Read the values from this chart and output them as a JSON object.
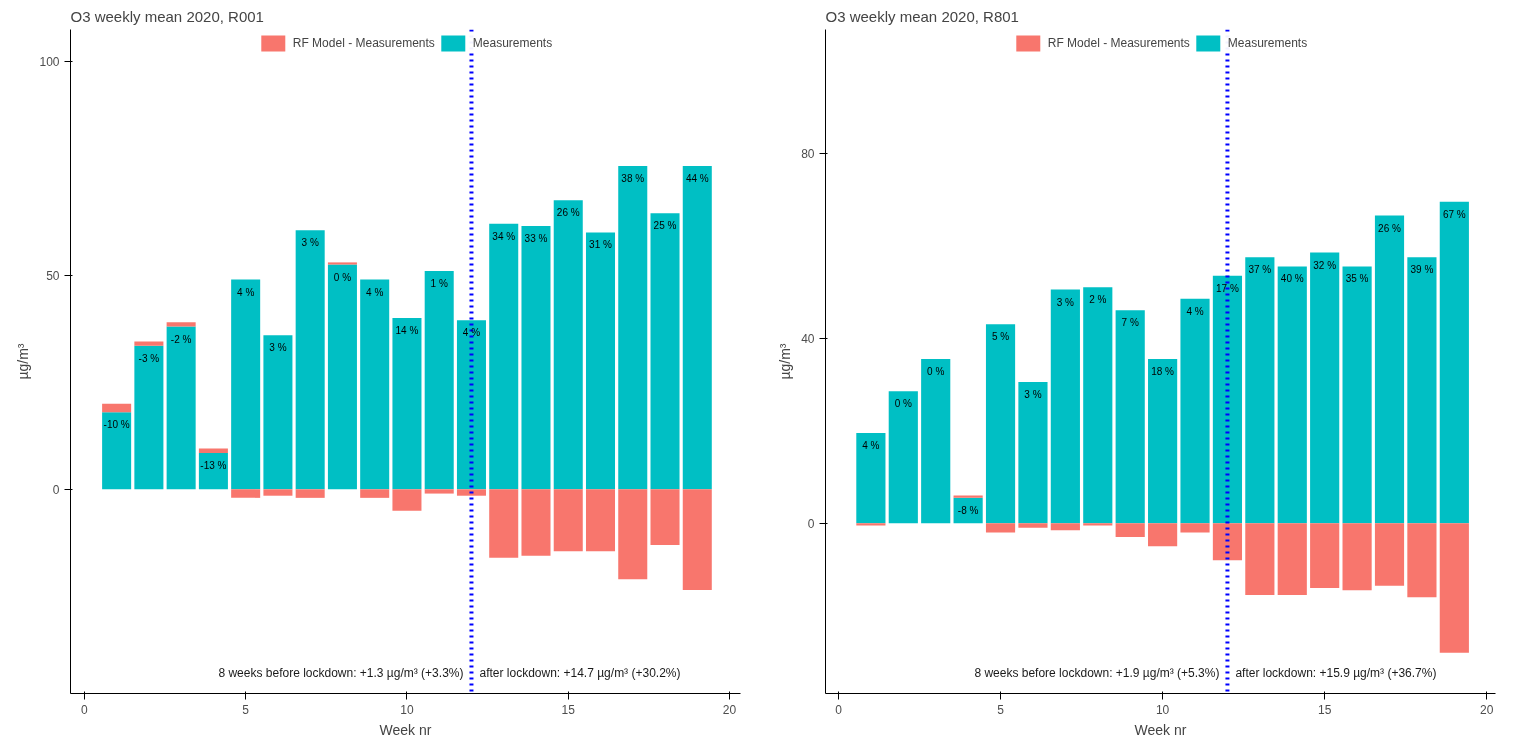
{
  "chart_data": [
    {
      "type": "bar",
      "title": "O3  weekly mean 2020, R001",
      "xlabel": "Week nr",
      "ylabel": "µg/m³",
      "stacked": true,
      "legend": "top",
      "grid": false,
      "x": [
        1,
        2,
        3,
        4,
        5,
        6,
        7,
        8,
        9,
        10,
        11,
        12,
        13,
        14,
        15,
        16,
        17,
        18,
        19
      ],
      "xlim": [
        -0.43,
        20.34
      ],
      "xticks": [
        0,
        5,
        10,
        15,
        20
      ],
      "ylim": [
        -47.7,
        107.4
      ],
      "yticks": [
        0,
        50,
        100
      ],
      "series": [
        {
          "name": "Measurements",
          "color": "#00bfc4",
          "values": [
            18,
            33.5,
            38,
            8.5,
            49,
            36,
            60.5,
            52.5,
            49,
            40,
            51,
            39.5,
            62,
            61.5,
            67.5,
            60,
            75.5,
            64.5,
            75.5
          ]
        },
        {
          "name": "RF Model - Measurements",
          "color": "#f8766d",
          "values": [
            2,
            1,
            1,
            1,
            -2,
            -1.5,
            -2,
            0.5,
            -2,
            -5,
            -1,
            -1.5,
            -16,
            -15.5,
            -14.5,
            -14.5,
            -21,
            -13,
            -23.5
          ]
        }
      ],
      "ref_lines": [
        {
          "axis": "x",
          "value": 12,
          "color": "#0000ff",
          "line_style": "dotted"
        }
      ],
      "annotations": [
        "8 weeks before lockdown: +1.3 µg/m³ (+3.3%)",
        "after lockdown: +14.7 µg/m³ (+30.2%)",
        {
          "text": "-10 %",
          "x": 1,
          "y": 18
        },
        {
          "text": "-3 %",
          "x": 2,
          "y": 33.5
        },
        {
          "text": "-2 %",
          "x": 3,
          "y": 38
        },
        {
          "text": "-13 %",
          "x": 4,
          "y": 8.5
        },
        {
          "text": "4 %",
          "x": 5,
          "y": 49
        },
        {
          "text": "3 %",
          "x": 6,
          "y": 36
        },
        {
          "text": "3 %",
          "x": 7,
          "y": 60.5
        },
        {
          "text": "0 %",
          "x": 8,
          "y": 52.5
        },
        {
          "text": "4 %",
          "x": 9,
          "y": 49
        },
        {
          "text": "14 %",
          "x": 10,
          "y": 40
        },
        {
          "text": "1 %",
          "x": 11,
          "y": 51
        },
        {
          "text": "4 %",
          "x": 12,
          "y": 39.5
        },
        {
          "text": "34 %",
          "x": 13,
          "y": 62
        },
        {
          "text": "33 %",
          "x": 14,
          "y": 61.5
        },
        {
          "text": "26 %",
          "x": 15,
          "y": 67.5
        },
        {
          "text": "31 %",
          "x": 16,
          "y": 60
        },
        {
          "text": "38 %",
          "x": 17,
          "y": 75.5
        },
        {
          "text": "25 %",
          "x": 18,
          "y": 64.5
        },
        {
          "text": "44 %",
          "x": 19,
          "y": 75.5
        }
      ]
    },
    {
      "type": "bar",
      "title": "O3  weekly mean 2020, R801",
      "xlabel": "Week nr",
      "ylabel": "µg/m³",
      "stacked": true,
      "legend": "top",
      "grid": false,
      "x": [
        1,
        2,
        3,
        4,
        5,
        6,
        7,
        8,
        9,
        10,
        11,
        12,
        13,
        14,
        15,
        16,
        17,
        18,
        19
      ],
      "xlim": [
        -0.4,
        20.27
      ],
      "xticks": [
        0,
        5,
        10,
        15,
        20
      ],
      "ylim": [
        -36.8,
        106.7
      ],
      "yticks": [
        0,
        40,
        80
      ],
      "series": [
        {
          "name": "Measurements",
          "color": "#00bfc4",
          "values": [
            19.5,
            28.5,
            35.5,
            5.5,
            43,
            30.5,
            50.5,
            51,
            46,
            35.5,
            48.5,
            53.5,
            57.5,
            55.5,
            58.5,
            55.5,
            66.5,
            57.5,
            69.5
          ]
        },
        {
          "name": "RF Model - Measurements",
          "color": "#f8766d",
          "values": [
            -0.5,
            0,
            0,
            0.5,
            -2,
            -1,
            -1.5,
            -0.5,
            -3,
            -5,
            -2,
            -8,
            -15.5,
            -15.5,
            -14,
            -14.5,
            -13.5,
            -16,
            -28
          ]
        }
      ],
      "ref_lines": [
        {
          "axis": "x",
          "value": 12,
          "color": "#0000ff",
          "line_style": "dotted"
        }
      ],
      "annotations": [
        "8 weeks before lockdown: +1.9 µg/m³ (+5.3%)",
        "after lockdown: +15.9 µg/m³ (+36.7%)",
        {
          "text": "4 %",
          "x": 1,
          "y": 19.5
        },
        {
          "text": "0 %",
          "x": 2,
          "y": 28.5
        },
        {
          "text": "0 %",
          "x": 3,
          "y": 35.5
        },
        {
          "text": "-8 %",
          "x": 4,
          "y": 5.5
        },
        {
          "text": "5 %",
          "x": 5,
          "y": 43
        },
        {
          "text": "3 %",
          "x": 6,
          "y": 30.5
        },
        {
          "text": "3 %",
          "x": 7,
          "y": 50.5
        },
        {
          "text": "2 %",
          "x": 8,
          "y": 51
        },
        {
          "text": "7 %",
          "x": 9,
          "y": 46
        },
        {
          "text": "18 %",
          "x": 10,
          "y": 35.5
        },
        {
          "text": "4 %",
          "x": 11,
          "y": 48.5
        },
        {
          "text": "17 %",
          "x": 12,
          "y": 53.5
        },
        {
          "text": "37 %",
          "x": 13,
          "y": 57.5
        },
        {
          "text": "40 %",
          "x": 14,
          "y": 55.5
        },
        {
          "text": "32 %",
          "x": 15,
          "y": 58.5
        },
        {
          "text": "35 %",
          "x": 16,
          "y": 55.5
        },
        {
          "text": "26 %",
          "x": 17,
          "y": 66.5
        },
        {
          "text": "39 %",
          "x": 18,
          "y": 57.5
        },
        {
          "text": "67 %",
          "x": 19,
          "y": 69.5
        }
      ]
    }
  ]
}
